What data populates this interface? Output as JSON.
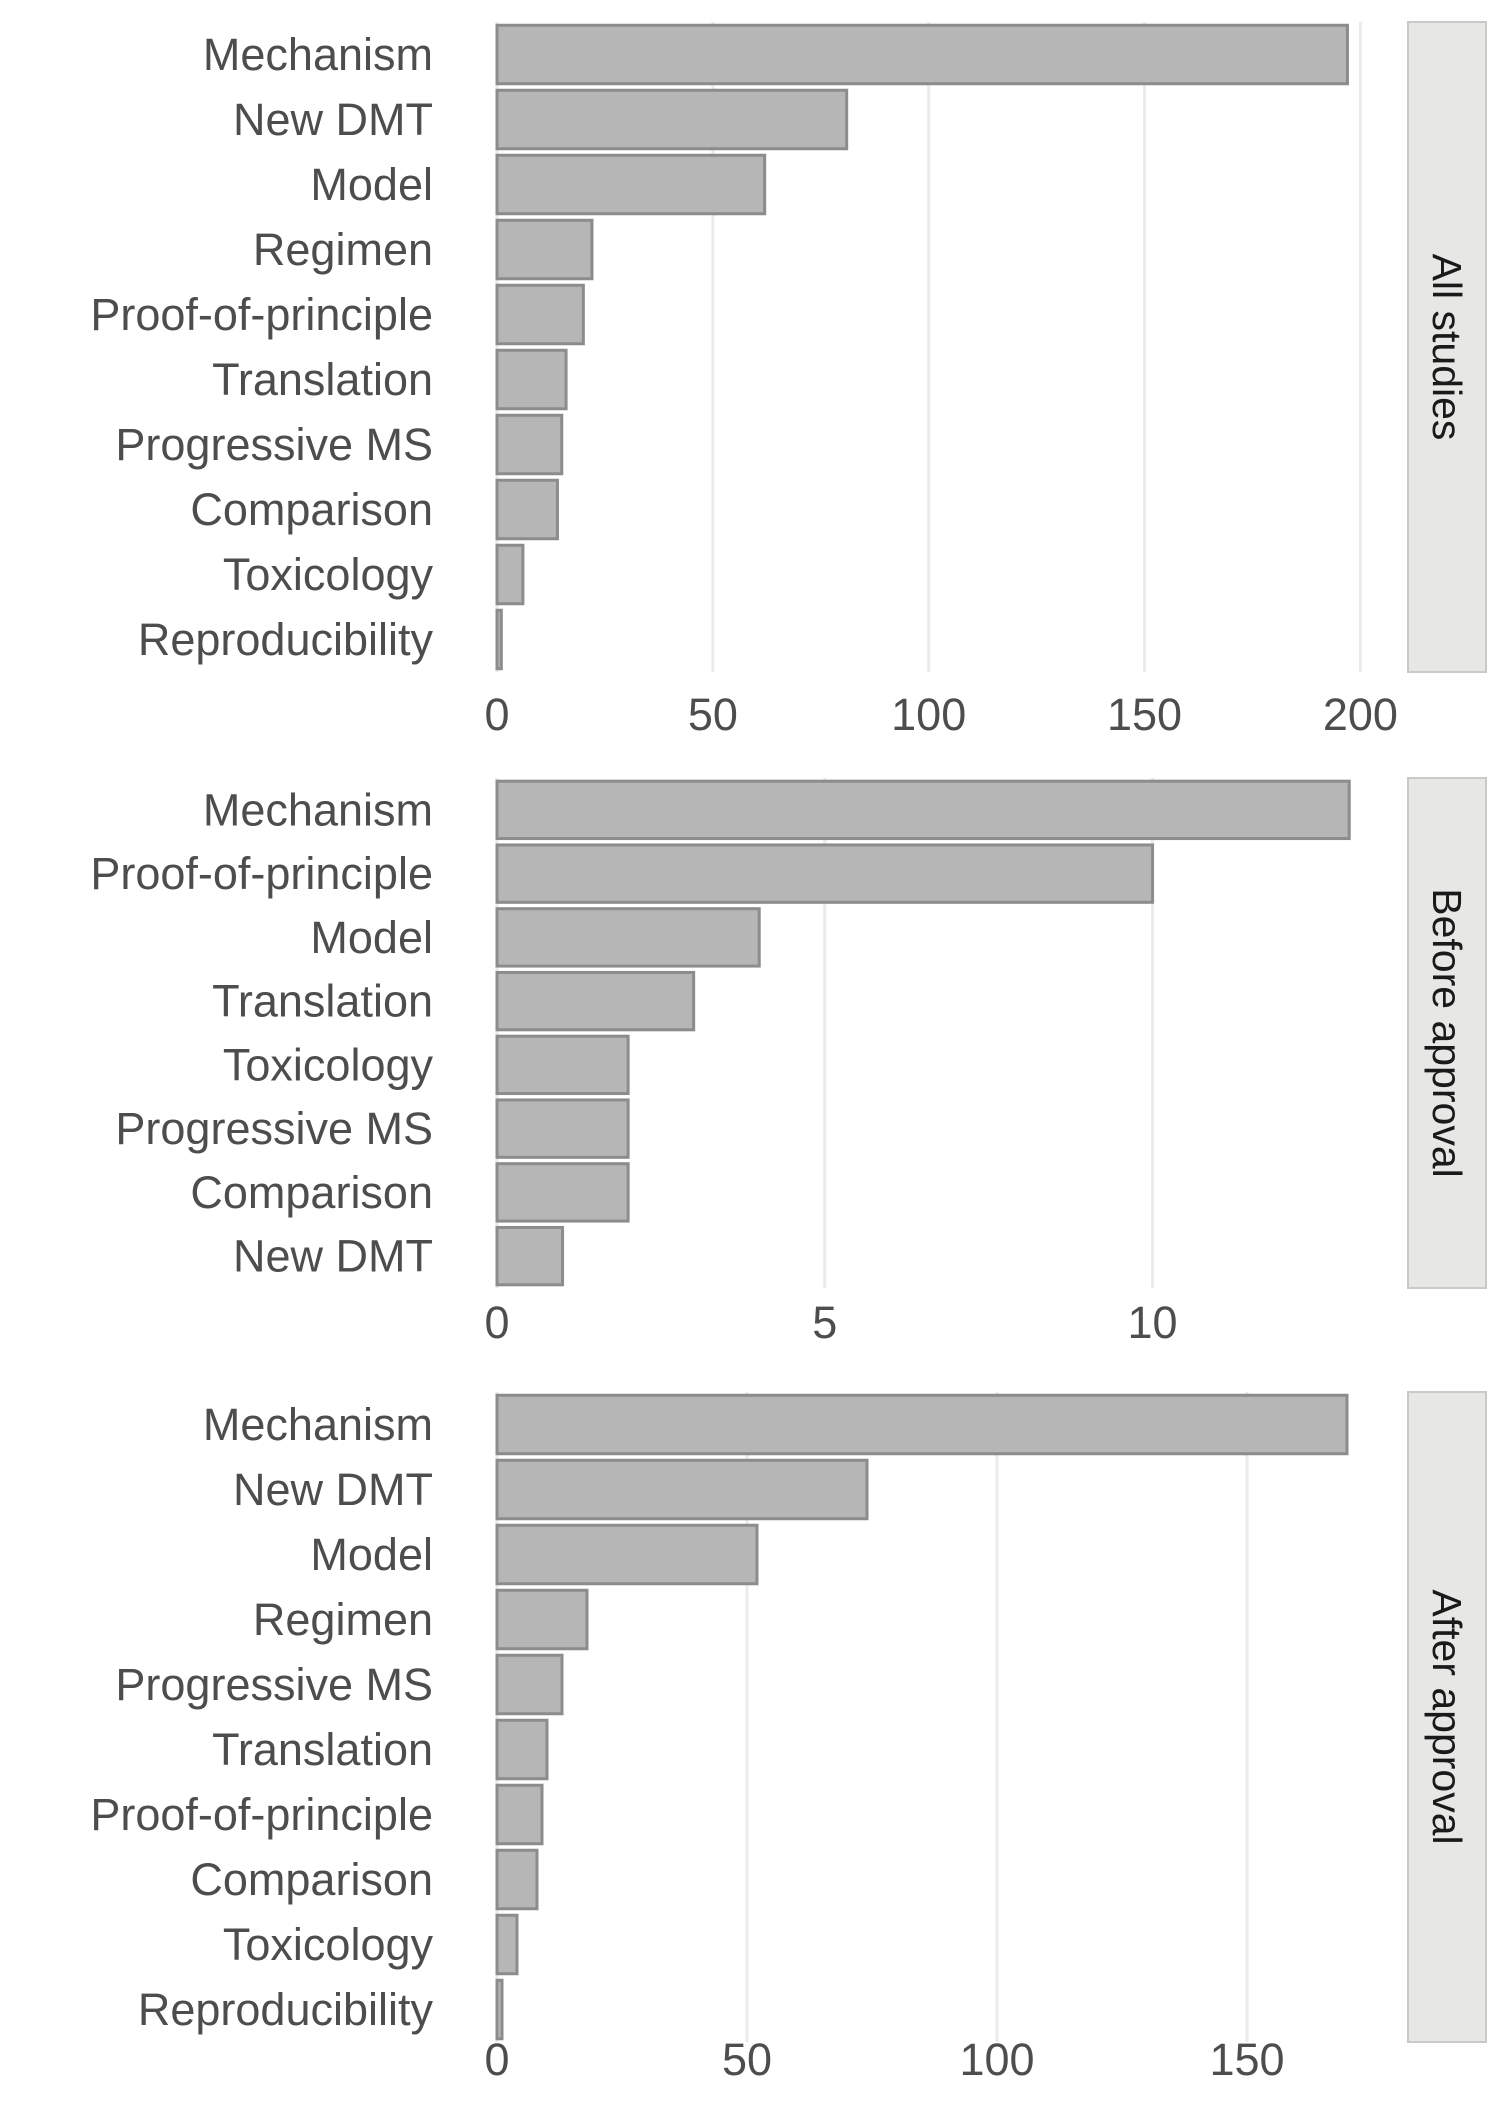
{
  "chart_data": [
    {
      "type": "bar",
      "orientation": "horizontal",
      "panel_label": "All studies",
      "categories": [
        "Mechanism",
        "New DMT",
        "Model",
        "Regimen",
        "Proof-of-principle",
        "Translation",
        "Progressive MS",
        "Comparison",
        "Toxicology",
        "Reproducibility"
      ],
      "values": [
        197,
        81,
        62,
        22,
        20,
        16,
        15,
        14,
        6,
        1
      ],
      "xlim": [
        0,
        205
      ],
      "xticks": [
        0,
        50,
        100,
        150,
        200
      ],
      "xtick_labels": [
        "0",
        "50",
        "100",
        "150",
        "200"
      ],
      "title": "",
      "xlabel": "",
      "ylabel": "",
      "grid": true
    },
    {
      "type": "bar",
      "orientation": "horizontal",
      "panel_label": "Before approval",
      "categories": [
        "Mechanism",
        "Proof-of-principle",
        "Model",
        "Translation",
        "Toxicology",
        "Progressive MS",
        "Comparison",
        "New DMT"
      ],
      "values": [
        13,
        10,
        4,
        3,
        2,
        2,
        2,
        1
      ],
      "xlim": [
        0,
        13.5
      ],
      "xticks": [
        0,
        5,
        10
      ],
      "xtick_labels": [
        "0",
        "5",
        "10"
      ],
      "title": "",
      "xlabel": "",
      "ylabel": "",
      "grid": true
    },
    {
      "type": "bar",
      "orientation": "horizontal",
      "panel_label": "After approval",
      "categories": [
        "Mechanism",
        "New DMT",
        "Model",
        "Regimen",
        "Progressive MS",
        "Translation",
        "Proof-of-principle",
        "Comparison",
        "Toxicology",
        "Reproducibility"
      ],
      "values": [
        170,
        74,
        52,
        18,
        13,
        10,
        9,
        8,
        4,
        1
      ],
      "xlim": [
        0,
        177
      ],
      "xticks": [
        0,
        50,
        100,
        150
      ],
      "xtick_labels": [
        "0",
        "50",
        "100",
        "150"
      ],
      "title": "",
      "xlabel": "",
      "ylabel": "",
      "grid": true
    }
  ],
  "colors": {
    "bar_fill": "#b6b6b6",
    "bar_outline": "#8c8c8c",
    "grid": "#ebebeb",
    "text": "#4d4d4d",
    "strip_fill": "#e7e8e5",
    "strip_text": "#1a1a1a"
  }
}
